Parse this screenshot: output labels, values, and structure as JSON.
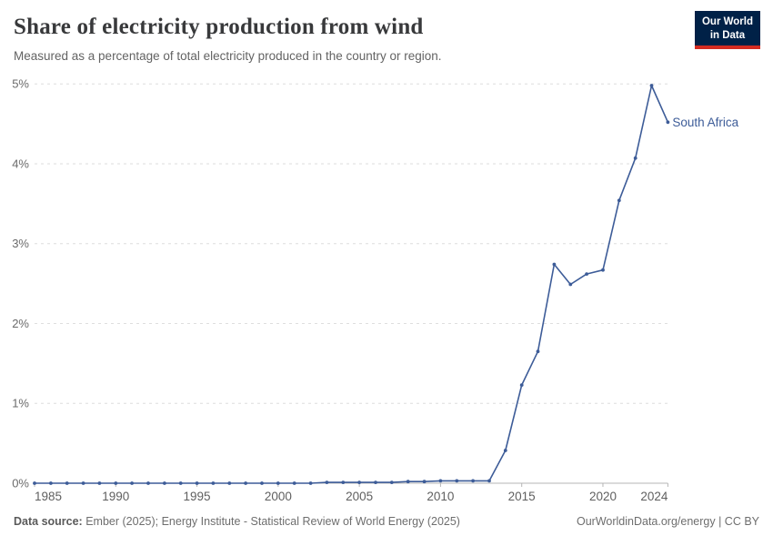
{
  "header": {
    "title": "Share of electricity production from wind",
    "subtitle": "Measured as a percentage of total electricity produced in the country or region.",
    "logo": {
      "line1": "Our World",
      "line2": "in Data",
      "bg_color": "#002147",
      "accent_color": "#d42b21"
    }
  },
  "footer": {
    "source_label": "Data source:",
    "source_text": " Ember (2025); Energy Institute - Statistical Review of World Energy (2025)",
    "right_text": "OurWorldinData.org/energy | CC BY"
  },
  "chart_data": {
    "type": "line",
    "title": "Share of electricity production from wind",
    "xlabel": "",
    "ylabel": "",
    "xlim": [
      1985,
      2024
    ],
    "ylim": [
      0,
      5
    ],
    "grid": "dashed-horizontal",
    "legend_position": "end-of-line-label",
    "x_ticks": [
      1985,
      1990,
      1995,
      2000,
      2005,
      2010,
      2015,
      2020,
      2024
    ],
    "y_ticks": [
      0,
      1,
      2,
      3,
      4,
      5
    ],
    "y_tick_suffix": "%",
    "series": [
      {
        "name": "South Africa",
        "color": "#3d5c98",
        "x": [
          1985,
          1986,
          1987,
          1988,
          1989,
          1990,
          1991,
          1992,
          1993,
          1994,
          1995,
          1996,
          1997,
          1998,
          1999,
          2000,
          2001,
          2002,
          2003,
          2004,
          2005,
          2006,
          2007,
          2008,
          2009,
          2010,
          2011,
          2012,
          2013,
          2014,
          2015,
          2016,
          2017,
          2018,
          2019,
          2020,
          2021,
          2022,
          2023,
          2024
        ],
        "values": [
          0,
          0,
          0,
          0,
          0,
          0,
          0,
          0,
          0,
          0,
          0,
          0,
          0,
          0,
          0,
          0,
          0,
          0,
          0.01,
          0.01,
          0.01,
          0.01,
          0.01,
          0.02,
          0.02,
          0.03,
          0.03,
          0.03,
          0.03,
          0.41,
          1.23,
          1.65,
          2.74,
          2.49,
          2.62,
          2.67,
          3.54,
          4.07,
          4.98,
          4.52
        ]
      }
    ],
    "colors": {
      "gridline": "#dedede",
      "axis_line": "#b5b5b5",
      "tick_label": "#5f5f5f",
      "y_label": "#6b6b6b"
    }
  }
}
